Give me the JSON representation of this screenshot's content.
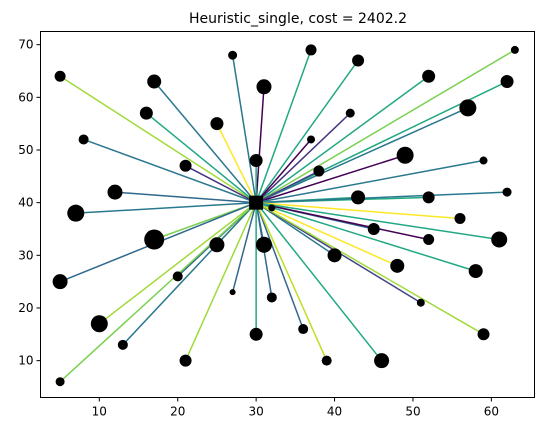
{
  "chart_data": {
    "type": "scatter",
    "title": "Heuristic_single, cost = 2402.2",
    "xlabel": "",
    "ylabel": "",
    "xlim": [
      2.5,
      65.5
    ],
    "ylim": [
      3.0,
      72.5
    ],
    "x_ticks": [
      10,
      20,
      30,
      40,
      50,
      60
    ],
    "y_ticks": [
      10,
      20,
      30,
      40,
      50,
      60,
      70
    ],
    "grid": false,
    "legend": "none",
    "hub": {
      "x": 30,
      "y": 40,
      "marker": "square"
    },
    "points": [
      {
        "x": 5,
        "y": 64,
        "size": 11,
        "color": "#a0da39"
      },
      {
        "x": 8,
        "y": 52,
        "size": 10,
        "color": "#2a788e"
      },
      {
        "x": 16,
        "y": 57,
        "size": 13,
        "color": "#22a884"
      },
      {
        "x": 17,
        "y": 63,
        "size": 14,
        "color": "#2a788e"
      },
      {
        "x": 21,
        "y": 47,
        "size": 12,
        "color": "#46327e"
      },
      {
        "x": 25,
        "y": 55,
        "size": 13,
        "color": "#fde725"
      },
      {
        "x": 27,
        "y": 68,
        "size": 9,
        "color": "#2a788e"
      },
      {
        "x": 31,
        "y": 62,
        "size": 15,
        "color": "#440154"
      },
      {
        "x": 37,
        "y": 69,
        "size": 11,
        "color": "#22a884"
      },
      {
        "x": 43,
        "y": 67,
        "size": 12,
        "color": "#22a884"
      },
      {
        "x": 52,
        "y": 64,
        "size": 13,
        "color": "#22a884"
      },
      {
        "x": 63,
        "y": 69,
        "size": 8,
        "color": "#7ad151"
      },
      {
        "x": 62,
        "y": 63,
        "size": 13,
        "color": "#22a884"
      },
      {
        "x": 57,
        "y": 58,
        "size": 17,
        "color": "#2a788e"
      },
      {
        "x": 42,
        "y": 57,
        "size": 9,
        "color": "#46327e"
      },
      {
        "x": 37,
        "y": 52,
        "size": 8,
        "color": "#440154"
      },
      {
        "x": 49,
        "y": 49,
        "size": 17,
        "color": "#440154"
      },
      {
        "x": 59,
        "y": 48,
        "size": 8,
        "color": "#2a788e"
      },
      {
        "x": 30,
        "y": 48,
        "size": 13,
        "color": "#22a884"
      },
      {
        "x": 38,
        "y": 46,
        "size": 11,
        "color": "#414487"
      },
      {
        "x": 12,
        "y": 42,
        "size": 15,
        "color": "#31688e"
      },
      {
        "x": 7,
        "y": 38,
        "size": 17,
        "color": "#2a788e"
      },
      {
        "x": 43,
        "y": 41,
        "size": 14,
        "color": "#22a884"
      },
      {
        "x": 52,
        "y": 41,
        "size": 12,
        "color": "#22a884"
      },
      {
        "x": 62,
        "y": 42,
        "size": 9,
        "color": "#2a788e"
      },
      {
        "x": 32,
        "y": 39,
        "size": 7,
        "color": "#fde725"
      },
      {
        "x": 56,
        "y": 37,
        "size": 11,
        "color": "#fde725"
      },
      {
        "x": 17,
        "y": 33,
        "size": 20,
        "color": "#7ad151"
      },
      {
        "x": 25,
        "y": 32,
        "size": 15,
        "color": "#a0da39"
      },
      {
        "x": 31,
        "y": 32,
        "size": 16,
        "color": "#2a788e"
      },
      {
        "x": 45,
        "y": 35,
        "size": 12,
        "color": "#31688e"
      },
      {
        "x": 52,
        "y": 33,
        "size": 11,
        "color": "#440154"
      },
      {
        "x": 61,
        "y": 33,
        "size": 16,
        "color": "#22a884"
      },
      {
        "x": 5,
        "y": 25,
        "size": 15,
        "color": "#31688e"
      },
      {
        "x": 20,
        "y": 26,
        "size": 10,
        "color": "#31688e"
      },
      {
        "x": 27,
        "y": 23,
        "size": 6,
        "color": "#31688e"
      },
      {
        "x": 32,
        "y": 22,
        "size": 10,
        "color": "#31688e"
      },
      {
        "x": 40,
        "y": 30,
        "size": 14,
        "color": "#2a788e"
      },
      {
        "x": 48,
        "y": 28,
        "size": 14,
        "color": "#fde725"
      },
      {
        "x": 58,
        "y": 27,
        "size": 14,
        "color": "#22a884"
      },
      {
        "x": 51,
        "y": 21,
        "size": 8,
        "color": "#414487"
      },
      {
        "x": 10,
        "y": 17,
        "size": 17,
        "color": "#a0da39"
      },
      {
        "x": 13,
        "y": 13,
        "size": 10,
        "color": "#2a788e"
      },
      {
        "x": 5,
        "y": 6,
        "size": 9,
        "color": "#7ad151"
      },
      {
        "x": 21,
        "y": 10,
        "size": 12,
        "color": "#a0da39"
      },
      {
        "x": 30,
        "y": 15,
        "size": 13,
        "color": "#22a884"
      },
      {
        "x": 36,
        "y": 16,
        "size": 10,
        "color": "#31688e"
      },
      {
        "x": 39,
        "y": 10,
        "size": 10,
        "color": "#bddf26"
      },
      {
        "x": 46,
        "y": 10,
        "size": 15,
        "color": "#22a884"
      },
      {
        "x": 59,
        "y": 15,
        "size": 12,
        "color": "#a0da39"
      }
    ]
  }
}
